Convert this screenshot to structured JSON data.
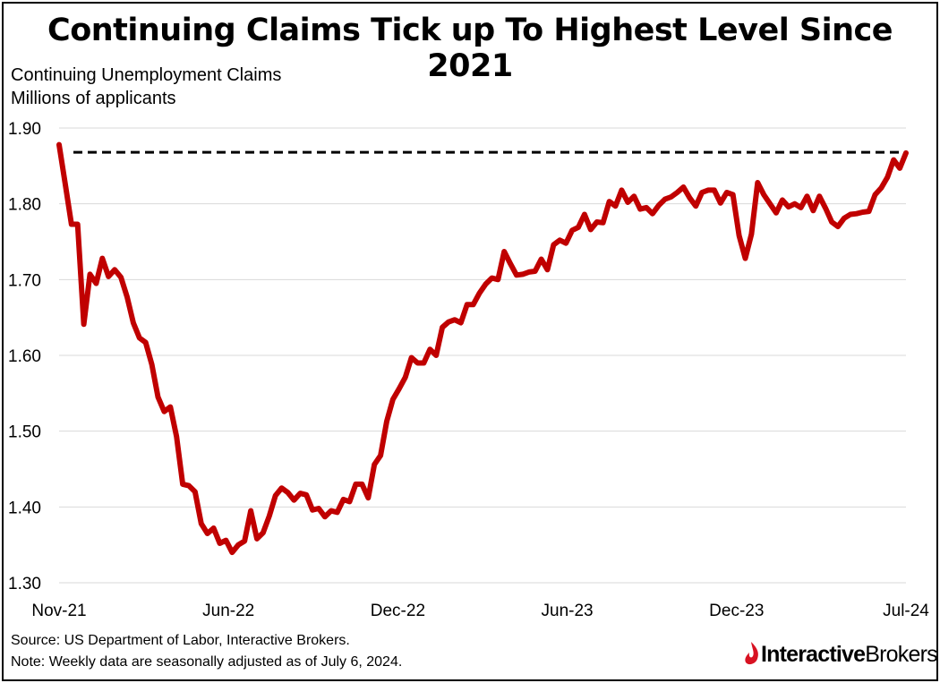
{
  "title": "Continuing Claims Tick up To Highest Level Since 2021",
  "subtitle_line1": "Continuing Unemployment Claims",
  "subtitle_line2": "Millions of applicants",
  "footer": {
    "source": "Source: US Department of Labor, Interactive Brokers.",
    "note": "Note: Weekly data are seasonally adjusted as of July 6, 2024."
  },
  "logo": {
    "part1": "Interactive",
    "part2": "Brokers"
  },
  "colors": {
    "series": "#C00000",
    "reference": "#000000",
    "grid": "#D9D9D9"
  },
  "chart_data": {
    "type": "line",
    "title": "Continuing Claims Tick up To Highest Level Since 2021",
    "ylabel": "Continuing Unemployment Claims, Millions of applicants",
    "ylim": [
      1.3,
      1.9
    ],
    "yticks": [
      "1.90",
      "1.80",
      "1.70",
      "1.60",
      "1.50",
      "1.40",
      "1.30"
    ],
    "x_tick_labels": [
      "Nov-21",
      "Jun-22",
      "Dec-22",
      "Jun-23",
      "Dec-23",
      "Jul-24"
    ],
    "grid": true,
    "frequency": "weekly",
    "reference_line": {
      "value": 1.868,
      "style": "dashed"
    },
    "series": [
      {
        "values": [
          1.878,
          1.826,
          1.773,
          1.773,
          1.641,
          1.707,
          1.695,
          1.728,
          1.704,
          1.713,
          1.703,
          1.677,
          1.643,
          1.623,
          1.617,
          1.588,
          1.545,
          1.526,
          1.532,
          1.493,
          1.43,
          1.428,
          1.42,
          1.378,
          1.365,
          1.372,
          1.352,
          1.356,
          1.34,
          1.35,
          1.355,
          1.395,
          1.358,
          1.366,
          1.388,
          1.415,
          1.425,
          1.419,
          1.409,
          1.418,
          1.416,
          1.396,
          1.398,
          1.387,
          1.395,
          1.393,
          1.41,
          1.407,
          1.43,
          1.43,
          1.412,
          1.456,
          1.468,
          1.513,
          1.542,
          1.556,
          1.571,
          1.597,
          1.59,
          1.59,
          1.608,
          1.6,
          1.637,
          1.644,
          1.647,
          1.643,
          1.667,
          1.667,
          1.682,
          1.694,
          1.702,
          1.7,
          1.737,
          1.721,
          1.706,
          1.707,
          1.71,
          1.711,
          1.727,
          1.713,
          1.746,
          1.752,
          1.748,
          1.765,
          1.769,
          1.786,
          1.766,
          1.776,
          1.775,
          1.803,
          1.797,
          1.818,
          1.802,
          1.81,
          1.793,
          1.795,
          1.787,
          1.798,
          1.806,
          1.809,
          1.815,
          1.822,
          1.808,
          1.797,
          1.815,
          1.818,
          1.818,
          1.801,
          1.815,
          1.812,
          1.758,
          1.728,
          1.76,
          1.828,
          1.812,
          1.8,
          1.788,
          1.805,
          1.796,
          1.8,
          1.795,
          1.81,
          1.791,
          1.81,
          1.794,
          1.776,
          1.77,
          1.781,
          1.786,
          1.787,
          1.789,
          1.79,
          1.812,
          1.821,
          1.835,
          1.858,
          1.847,
          1.867
        ]
      }
    ]
  }
}
